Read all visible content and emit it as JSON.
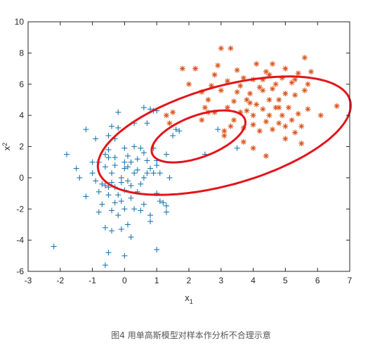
{
  "caption": "图4 用单高斯模型对样本作分析不合理示意",
  "chart_data": {
    "type": "scatter",
    "title": "",
    "xlabel": "x",
    "xlabel_sub": "1",
    "ylabel": "x",
    "ylabel_sub": "2",
    "xlim": [
      -3,
      7
    ],
    "ylim": [
      -6,
      10
    ],
    "xticks": [
      -3,
      -2,
      -1,
      0,
      1,
      2,
      3,
      4,
      5,
      6,
      7
    ],
    "yticks": [
      -6,
      -4,
      -2,
      0,
      2,
      4,
      6,
      8,
      10
    ],
    "grid": false,
    "colors": {
      "blue": "#1f77b4",
      "orange": "#d95319",
      "ellipse": "#e3141b",
      "axis": "#262626"
    },
    "series": [
      {
        "marker": "+",
        "color": "#1f77b4",
        "points": [
          [
            -2.2,
            -4.4
          ],
          [
            -1.8,
            1.5
          ],
          [
            -1.5,
            0.6
          ],
          [
            -1.4,
            0.0
          ],
          [
            -1.2,
            3.1
          ],
          [
            -1.2,
            -1.2
          ],
          [
            -1.0,
            0.3
          ],
          [
            -1.0,
            1.0
          ],
          [
            -0.9,
            2.5
          ],
          [
            -0.9,
            -0.2
          ],
          [
            -0.8,
            1.0
          ],
          [
            -0.8,
            -0.9
          ],
          [
            -0.8,
            -2.2
          ],
          [
            -0.7,
            -0.4
          ],
          [
            -0.7,
            -1.7
          ],
          [
            -0.6,
            1.5
          ],
          [
            -0.6,
            0.7
          ],
          [
            -0.6,
            -0.5
          ],
          [
            -0.6,
            -3.2
          ],
          [
            -0.5,
            2.7
          ],
          [
            -0.5,
            1.8
          ],
          [
            -0.5,
            -0.6
          ],
          [
            -0.5,
            -1.1
          ],
          [
            -0.5,
            -4.8
          ],
          [
            -0.4,
            3.3
          ],
          [
            -0.4,
            0.3
          ],
          [
            -0.4,
            -0.3
          ],
          [
            -0.4,
            -2.1
          ],
          [
            -0.4,
            -3.4
          ],
          [
            -0.3,
            2.5
          ],
          [
            -0.3,
            1.3
          ],
          [
            -0.3,
            0.8
          ],
          [
            -0.3,
            -0.6
          ],
          [
            -0.3,
            -1.6
          ],
          [
            -0.2,
            3.2
          ],
          [
            -0.2,
            4.2
          ],
          [
            -0.2,
            -1.1
          ],
          [
            -0.2,
            -2.4
          ],
          [
            -0.1,
            0.0
          ],
          [
            -0.1,
            -0.3
          ],
          [
            -0.1,
            -1.5
          ],
          [
            -0.1,
            -3.3
          ],
          [
            0.0,
            1.9
          ],
          [
            0.0,
            1.0
          ],
          [
            0.0,
            0.6
          ],
          [
            0.0,
            -0.8
          ],
          [
            0.0,
            -2.0
          ],
          [
            0.0,
            -5.0
          ],
          [
            0.1,
            1.4
          ],
          [
            0.1,
            0.7
          ],
          [
            0.1,
            -0.2
          ],
          [
            0.1,
            -3.0
          ],
          [
            0.2,
            1.0
          ],
          [
            0.2,
            -0.5
          ],
          [
            0.2,
            -1.3
          ],
          [
            0.2,
            -3.8
          ],
          [
            0.3,
            2.0
          ],
          [
            0.3,
            0.3
          ],
          [
            0.3,
            3.5
          ],
          [
            0.3,
            -2.0
          ],
          [
            0.4,
            1.2
          ],
          [
            0.4,
            0.5
          ],
          [
            0.4,
            -0.9
          ],
          [
            0.5,
            1.9
          ],
          [
            0.5,
            -0.4
          ],
          [
            0.5,
            -2.1
          ],
          [
            0.6,
            4.5
          ],
          [
            0.6,
            1.6
          ],
          [
            0.6,
            0.0
          ],
          [
            0.6,
            -1.7
          ],
          [
            0.7,
            3.5
          ],
          [
            0.7,
            1.1
          ],
          [
            0.7,
            0.3
          ],
          [
            0.8,
            0.6
          ],
          [
            0.8,
            -2.4
          ],
          [
            0.8,
            -2.8
          ],
          [
            0.8,
            4.4
          ],
          [
            0.9,
            4.3
          ],
          [
            0.9,
            1.9
          ],
          [
            0.9,
            0.3
          ],
          [
            1.0,
            4.3
          ],
          [
            1.0,
            1.1
          ],
          [
            1.0,
            0.8
          ],
          [
            1.0,
            -1.0
          ],
          [
            1.0,
            -4.6
          ],
          [
            1.1,
            0.3
          ],
          [
            1.1,
            -1.5
          ],
          [
            1.2,
            -1.6
          ],
          [
            1.3,
            1.5
          ],
          [
            1.3,
            -1.8
          ],
          [
            1.3,
            -2.2
          ],
          [
            1.4,
            0.0
          ],
          [
            1.5,
            2.7
          ],
          [
            1.6,
            3.1
          ],
          [
            1.7,
            3.0
          ],
          [
            2.5,
            1.5
          ],
          [
            2.9,
            3.1
          ],
          [
            3.5,
            1.9
          ],
          [
            -0.6,
            -5.6
          ],
          [
            -0.5,
            1.3
          ]
        ]
      },
      {
        "marker": "*",
        "color": "#d95319",
        "points": [
          [
            1.3,
            4.0
          ],
          [
            1.4,
            3.5
          ],
          [
            1.5,
            4.2
          ],
          [
            2.0,
            6.0
          ],
          [
            1.8,
            7.0
          ],
          [
            2.2,
            7.0
          ],
          [
            2.4,
            5.5
          ],
          [
            2.6,
            5.0
          ],
          [
            2.5,
            4.5
          ],
          [
            2.6,
            4.2
          ],
          [
            2.7,
            5.9
          ],
          [
            2.8,
            4.2
          ],
          [
            2.8,
            6.6
          ],
          [
            2.9,
            7.2
          ],
          [
            3.0,
            8.3
          ],
          [
            3.1,
            3.0
          ],
          [
            3.0,
            5.6
          ],
          [
            3.1,
            2.7
          ],
          [
            3.2,
            4.5
          ],
          [
            3.2,
            6.2
          ],
          [
            3.3,
            3.3
          ],
          [
            3.4,
            3.7
          ],
          [
            3.4,
            4.9
          ],
          [
            3.5,
            5.5
          ],
          [
            3.5,
            6.9
          ],
          [
            3.6,
            5.9
          ],
          [
            3.6,
            4.2
          ],
          [
            3.7,
            6.4
          ],
          [
            3.7,
            2.3
          ],
          [
            3.7,
            3.2
          ],
          [
            3.8,
            4.3
          ],
          [
            3.8,
            5.0
          ],
          [
            3.9,
            5.4
          ],
          [
            4.0,
            4.0
          ],
          [
            4.0,
            3.4
          ],
          [
            4.0,
            6.3
          ],
          [
            4.0,
            1.9
          ],
          [
            4.1,
            4.7
          ],
          [
            4.1,
            7.3
          ],
          [
            4.2,
            5.8
          ],
          [
            4.2,
            3.0
          ],
          [
            4.3,
            4.4
          ],
          [
            4.3,
            5.6
          ],
          [
            4.3,
            6.3
          ],
          [
            4.4,
            3.6
          ],
          [
            4.4,
            1.4
          ],
          [
            4.5,
            4.0
          ],
          [
            4.5,
            5.0
          ],
          [
            4.5,
            6.6
          ],
          [
            4.6,
            3.1
          ],
          [
            4.6,
            5.7
          ],
          [
            4.6,
            7.3
          ],
          [
            4.7,
            4.5
          ],
          [
            4.7,
            6.0
          ],
          [
            4.8,
            3.5
          ],
          [
            4.8,
            5.0
          ],
          [
            4.9,
            6.4
          ],
          [
            4.9,
            4.0
          ],
          [
            5.0,
            2.5
          ],
          [
            5.0,
            5.4
          ],
          [
            5.0,
            7.0
          ],
          [
            5.0,
            3.3
          ],
          [
            5.1,
            4.5
          ],
          [
            5.2,
            6.1
          ],
          [
            5.2,
            3.7
          ],
          [
            5.3,
            5.3
          ],
          [
            5.3,
            2.9
          ],
          [
            5.4,
            4.1
          ],
          [
            5.4,
            6.7
          ],
          [
            5.5,
            3.3
          ],
          [
            5.5,
            2.2
          ],
          [
            5.6,
            5.6
          ],
          [
            5.6,
            7.7
          ],
          [
            5.7,
            4.4
          ],
          [
            5.7,
            6.0
          ],
          [
            5.8,
            6.8
          ],
          [
            6.1,
            4.0
          ],
          [
            6.6,
            4.6
          ],
          [
            3.3,
            8.3
          ],
          [
            2.4,
            3.7
          ],
          [
            4.4,
            6.8
          ],
          [
            5.3,
            6.3
          ],
          [
            3.9,
            4.8
          ],
          [
            4.8,
            4.5
          ]
        ]
      }
    ],
    "ellipses": [
      {
        "center": [
          3.1,
          2.7
        ],
        "semi_major": 4.75,
        "semi_minor": 2.7,
        "angle_deg": 43
      },
      {
        "center": [
          2.3,
          2.65
        ],
        "semi_major": 1.95,
        "semi_minor": 1.05,
        "angle_deg": 52
      }
    ]
  }
}
